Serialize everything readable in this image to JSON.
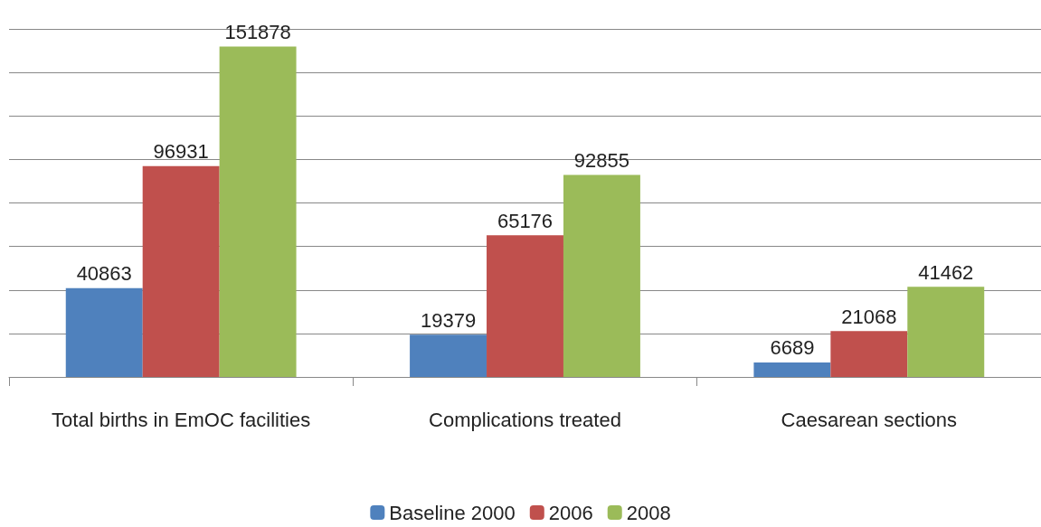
{
  "chart_data": {
    "type": "bar",
    "categories": [
      "Total births in EmOC facilities",
      "Complications treated",
      "Caesarean sections"
    ],
    "series": [
      {
        "name": "Baseline 2000",
        "color": "#4f81bd",
        "values": [
          40863,
          19379,
          6689
        ]
      },
      {
        "name": "2006",
        "color": "#c0504d",
        "values": [
          96931,
          65176,
          21068
        ]
      },
      {
        "name": "2008",
        "color": "#9bbb59",
        "values": [
          151878,
          92855,
          41462
        ]
      }
    ],
    "ylim": [
      0,
      160000
    ],
    "yticks": [
      {
        "value": 0,
        "label": null
      },
      {
        "value": 20000,
        "label": null
      },
      {
        "value": 40000,
        "label": null
      },
      {
        "value": 60000,
        "label": null
      },
      {
        "value": 80000,
        "label": null
      },
      {
        "value": 100000,
        "label": null
      },
      {
        "value": 120000,
        "label": null
      },
      {
        "value": 140000,
        "label": null
      },
      {
        "value": 160000,
        "label": null
      }
    ],
    "grid": "y",
    "legend": "bottom",
    "tick_labels": "x",
    "data_labels": true
  }
}
